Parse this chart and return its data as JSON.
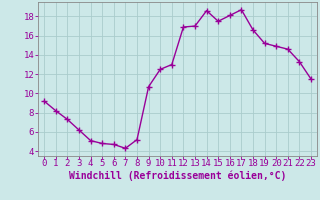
{
  "hours": [
    0,
    1,
    2,
    3,
    4,
    5,
    6,
    7,
    8,
    9,
    10,
    11,
    12,
    13,
    14,
    15,
    16,
    17,
    18,
    19,
    20,
    21,
    22,
    23
  ],
  "values": [
    9.2,
    8.2,
    7.3,
    6.2,
    5.1,
    4.8,
    4.7,
    4.3,
    5.2,
    10.7,
    12.5,
    13.0,
    16.9,
    17.0,
    18.6,
    17.5,
    18.1,
    18.7,
    16.6,
    15.2,
    14.9,
    14.6,
    13.3,
    11.5
  ],
  "line_color": "#990099",
  "marker": "+",
  "markersize": 4,
  "linewidth": 1.0,
  "bg_color": "#cce8e8",
  "grid_color": "#aacccc",
  "xlabel": "Windchill (Refroidissement éolien,°C)",
  "xlabel_color": "#990099",
  "ylabel_ticks": [
    4,
    6,
    8,
    10,
    12,
    14,
    16,
    18
  ],
  "xlim": [
    -0.5,
    23.5
  ],
  "ylim": [
    3.5,
    19.5
  ],
  "tick_color": "#990099",
  "axis_color": "#888888",
  "font_size": 6.5,
  "xlabel_fontsize": 7.0
}
